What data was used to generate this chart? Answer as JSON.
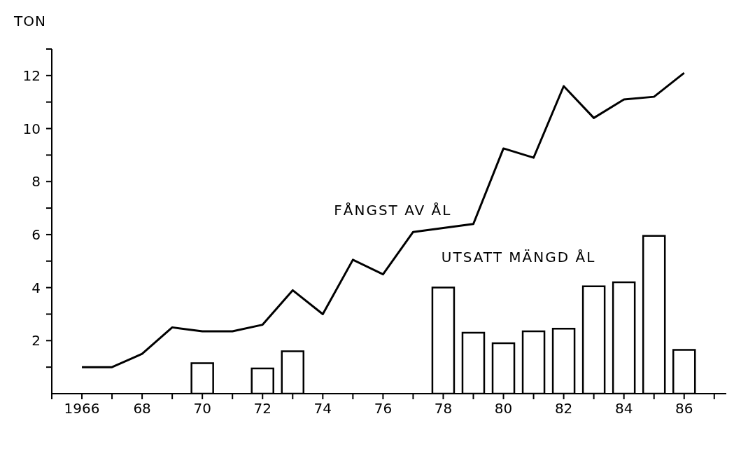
{
  "chart_data": {
    "type": "line",
    "ylabel": "TON",
    "x": [
      1966,
      1967,
      1968,
      1969,
      1970,
      1971,
      1972,
      1973,
      1974,
      1975,
      1976,
      1977,
      1978,
      1979,
      1980,
      1981,
      1982,
      1983,
      1984,
      1985,
      1986
    ],
    "series": [
      {
        "name": "FÅNGST AV ÅL",
        "color": "#000000",
        "values": [
          1.0,
          1.0,
          1.5,
          2.5,
          2.35,
          2.35,
          2.6,
          3.9,
          3.0,
          5.05,
          4.5,
          6.1,
          6.25,
          6.4,
          9.25,
          8.9,
          11.6,
          10.4,
          11.1,
          11.2,
          12.1
        ]
      },
      {
        "name": "UTSATT MÄNGD ÅL",
        "type": "bar",
        "color": "#000000",
        "values": [
          null,
          null,
          null,
          null,
          1.15,
          null,
          0.95,
          1.6,
          null,
          null,
          null,
          null,
          4.0,
          2.3,
          1.9,
          2.35,
          2.45,
          4.05,
          4.2,
          5.95,
          1.65
        ]
      }
    ],
    "xlim": [
      1965,
      1987.4
    ],
    "xticks": [
      {
        "value": 1965,
        "label": null
      },
      1966,
      {
        "value": 1967,
        "label": null
      },
      {
        "value": 1968,
        "label": "68"
      },
      {
        "value": 1969,
        "label": null
      },
      {
        "value": 1970,
        "label": "70"
      },
      {
        "value": 1971,
        "label": null
      },
      {
        "value": 1972,
        "label": "72"
      },
      {
        "value": 1973,
        "label": null
      },
      {
        "value": 1974,
        "label": "74"
      },
      {
        "value": 1975,
        "label": null
      },
      {
        "value": 1976,
        "label": "76"
      },
      {
        "value": 1977,
        "label": null
      },
      {
        "value": 1978,
        "label": "78"
      },
      {
        "value": 1979,
        "label": null
      },
      {
        "value": 1980,
        "label": "80"
      },
      {
        "value": 1981,
        "label": null
      },
      {
        "value": 1982,
        "label": "82"
      },
      {
        "value": 1983,
        "label": null
      },
      {
        "value": 1984,
        "label": "84"
      },
      {
        "value": 1985,
        "label": null
      },
      {
        "value": 1986,
        "label": "86"
      },
      {
        "value": 1987,
        "label": null
      }
    ],
    "ylim": [
      0,
      13
    ],
    "yticks": [
      {
        "value": 1,
        "label": null
      },
      2,
      {
        "value": 3,
        "label": null
      },
      4,
      {
        "value": 5,
        "label": null
      },
      6,
      {
        "value": 7,
        "label": null
      },
      8,
      {
        "value": 9,
        "label": null
      },
      10,
      {
        "value": 11,
        "label": null
      },
      12,
      {
        "value": 13,
        "label": null
      }
    ],
    "grid": false,
    "legend": false,
    "marker": "none",
    "line_style": "solid"
  }
}
